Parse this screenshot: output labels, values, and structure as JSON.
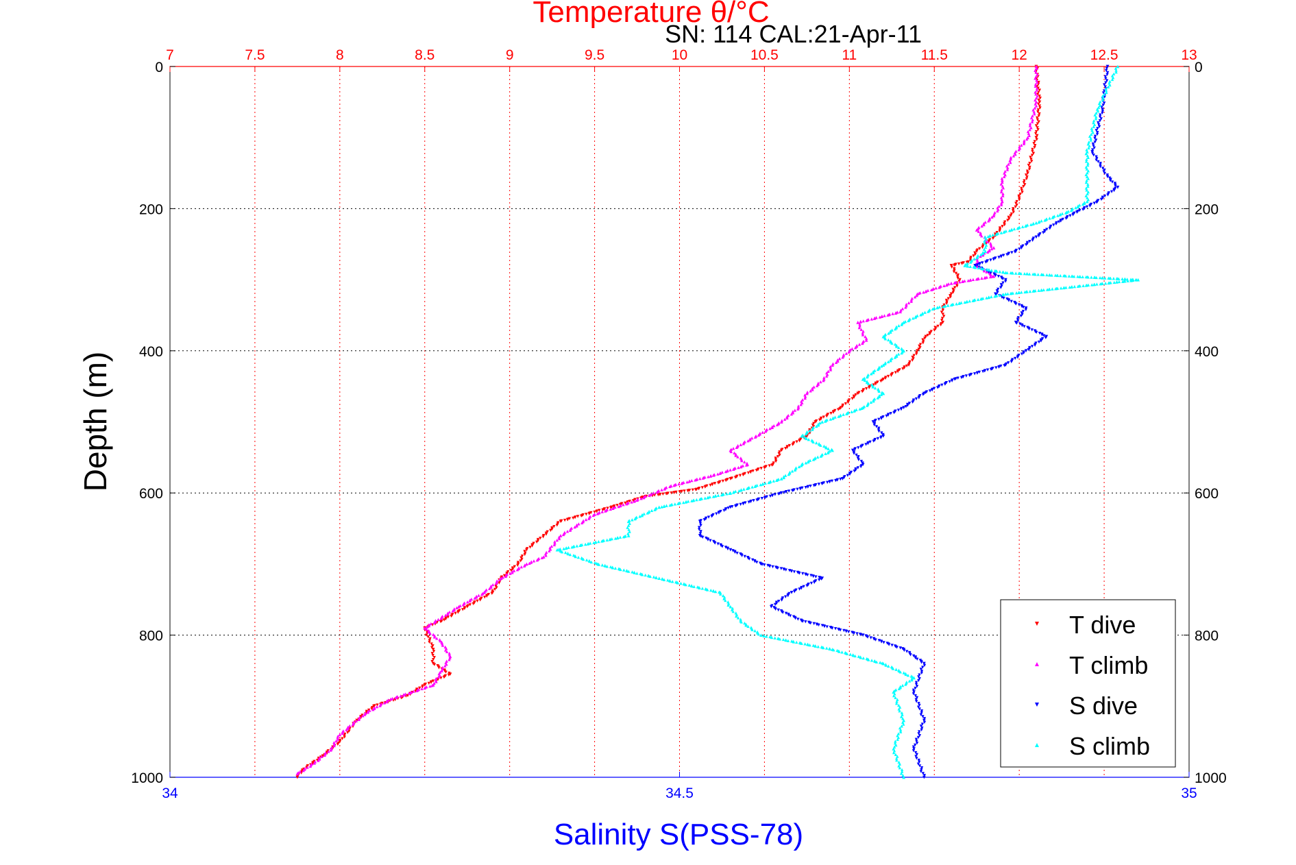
{
  "chart_data": {
    "type": "scatter",
    "title": "Temperature θ/°C",
    "subtitle": "SN: 114  CAL:21-Apr-11",
    "ylabel": "Depth (m)",
    "xlabel": "Salinity S(PSS-78)",
    "grid": true,
    "legend_position": "bottom-right",
    "y_reversed": true,
    "ylim": [
      0,
      1000
    ],
    "ticks_y": [
      0,
      200,
      400,
      600,
      800,
      1000
    ],
    "temperature_axis": {
      "position": "top",
      "range": [
        7,
        13
      ],
      "ticks": [
        7,
        7.5,
        8,
        8.5,
        9,
        9.5,
        10,
        10.5,
        11,
        11.5,
        12,
        12.5,
        13
      ],
      "tick_labels": [
        "7",
        "7.5",
        "8",
        "8.5",
        "9",
        "9.5",
        "10",
        "10.5",
        "11",
        "11.5",
        "12",
        "12.5",
        "13"
      ],
      "color": "#ff0000"
    },
    "salinity_axis": {
      "position": "bottom",
      "range": [
        34,
        35
      ],
      "ticks": [
        34,
        34.5,
        35
      ],
      "tick_labels": [
        "34",
        "34.5",
        "35"
      ],
      "color": "#0000ff"
    },
    "series": [
      {
        "name": "T dive",
        "axis": "temperature",
        "color": "#ff0000",
        "marker": "triangle-down",
        "points": [
          [
            12.1,
            0
          ],
          [
            12.12,
            50
          ],
          [
            12.1,
            100
          ],
          [
            12.05,
            150
          ],
          [
            12.0,
            185
          ],
          [
            11.95,
            210
          ],
          [
            11.85,
            240
          ],
          [
            11.75,
            260
          ],
          [
            11.7,
            275
          ],
          [
            11.6,
            280
          ],
          [
            11.65,
            300
          ],
          [
            11.6,
            320
          ],
          [
            11.55,
            340
          ],
          [
            11.55,
            360
          ],
          [
            11.45,
            380
          ],
          [
            11.4,
            400
          ],
          [
            11.35,
            420
          ],
          [
            11.2,
            440
          ],
          [
            11.05,
            460
          ],
          [
            10.95,
            480
          ],
          [
            10.8,
            500
          ],
          [
            10.75,
            520
          ],
          [
            10.6,
            540
          ],
          [
            10.55,
            560
          ],
          [
            10.3,
            580
          ],
          [
            10.1,
            595
          ],
          [
            9.8,
            605
          ],
          [
            9.6,
            620
          ],
          [
            9.3,
            640
          ],
          [
            9.2,
            660
          ],
          [
            9.1,
            680
          ],
          [
            9.05,
            700
          ],
          [
            8.95,
            720
          ],
          [
            8.9,
            740
          ],
          [
            8.75,
            760
          ],
          [
            8.6,
            780
          ],
          [
            8.5,
            790
          ],
          [
            8.55,
            820
          ],
          [
            8.55,
            840
          ],
          [
            8.65,
            855
          ],
          [
            8.5,
            870
          ],
          [
            8.4,
            885
          ],
          [
            8.2,
            900
          ],
          [
            8.1,
            920
          ],
          [
            8.0,
            950
          ],
          [
            7.9,
            970
          ],
          [
            7.78,
            990
          ],
          [
            7.75,
            1000
          ]
        ]
      },
      {
        "name": "T climb",
        "axis": "temperature",
        "color": "#ff00ff",
        "marker": "triangle-up",
        "points": [
          [
            12.1,
            0
          ],
          [
            12.1,
            50
          ],
          [
            12.05,
            100
          ],
          [
            11.95,
            130
          ],
          [
            11.9,
            160
          ],
          [
            11.9,
            190
          ],
          [
            11.85,
            210
          ],
          [
            11.75,
            230
          ],
          [
            11.85,
            255
          ],
          [
            11.75,
            270
          ],
          [
            11.75,
            280
          ],
          [
            11.85,
            295
          ],
          [
            11.6,
            305
          ],
          [
            11.4,
            320
          ],
          [
            11.3,
            345
          ],
          [
            11.05,
            360
          ],
          [
            11.1,
            385
          ],
          [
            11.0,
            400
          ],
          [
            10.9,
            420
          ],
          [
            10.85,
            440
          ],
          [
            10.75,
            460
          ],
          [
            10.7,
            480
          ],
          [
            10.6,
            500
          ],
          [
            10.45,
            520
          ],
          [
            10.3,
            540
          ],
          [
            10.4,
            560
          ],
          [
            10.2,
            575
          ],
          [
            9.95,
            590
          ],
          [
            9.75,
            610
          ],
          [
            9.5,
            630
          ],
          [
            9.3,
            660
          ],
          [
            9.2,
            690
          ],
          [
            9.1,
            700
          ],
          [
            8.95,
            720
          ],
          [
            8.85,
            740
          ],
          [
            8.7,
            760
          ],
          [
            8.5,
            790
          ],
          [
            8.6,
            810
          ],
          [
            8.65,
            830
          ],
          [
            8.6,
            850
          ],
          [
            8.55,
            870
          ],
          [
            8.3,
            890
          ],
          [
            8.15,
            910
          ],
          [
            8.0,
            940
          ],
          [
            7.95,
            960
          ],
          [
            7.85,
            980
          ],
          [
            7.75,
            995
          ]
        ]
      },
      {
        "name": "S dive",
        "axis": "salinity",
        "color": "#0000ff",
        "marker": "triangle-down",
        "points": [
          [
            34.92,
            0
          ],
          [
            34.915,
            60
          ],
          [
            34.905,
            120
          ],
          [
            34.92,
            155
          ],
          [
            34.93,
            170
          ],
          [
            34.91,
            190
          ],
          [
            34.89,
            205
          ],
          [
            34.87,
            220
          ],
          [
            34.85,
            240
          ],
          [
            34.83,
            260
          ],
          [
            34.79,
            280
          ],
          [
            34.82,
            300
          ],
          [
            34.81,
            320
          ],
          [
            34.84,
            340
          ],
          [
            34.83,
            360
          ],
          [
            34.86,
            380
          ],
          [
            34.84,
            400
          ],
          [
            34.82,
            420
          ],
          [
            34.77,
            440
          ],
          [
            34.74,
            460
          ],
          [
            34.72,
            480
          ],
          [
            34.69,
            500
          ],
          [
            34.7,
            520
          ],
          [
            34.67,
            540
          ],
          [
            34.68,
            560
          ],
          [
            34.66,
            580
          ],
          [
            34.6,
            600
          ],
          [
            34.55,
            620
          ],
          [
            34.52,
            640
          ],
          [
            34.52,
            660
          ],
          [
            34.55,
            680
          ],
          [
            34.58,
            700
          ],
          [
            34.64,
            720
          ],
          [
            34.61,
            740
          ],
          [
            34.59,
            760
          ],
          [
            34.62,
            780
          ],
          [
            34.68,
            800
          ],
          [
            34.72,
            820
          ],
          [
            34.74,
            840
          ],
          [
            34.73,
            880
          ],
          [
            34.74,
            920
          ],
          [
            34.73,
            960
          ],
          [
            34.74,
            1000
          ]
        ]
      },
      {
        "name": "S climb",
        "axis": "salinity",
        "color": "#00ffff",
        "marker": "triangle-up",
        "points": [
          [
            34.93,
            0
          ],
          [
            34.91,
            60
          ],
          [
            34.9,
            120
          ],
          [
            34.9,
            155
          ],
          [
            34.9,
            190
          ],
          [
            34.88,
            205
          ],
          [
            34.85,
            220
          ],
          [
            34.8,
            240
          ],
          [
            34.8,
            260
          ],
          [
            34.78,
            280
          ],
          [
            34.82,
            290
          ],
          [
            34.95,
            300
          ],
          [
            34.82,
            320
          ],
          [
            34.75,
            340
          ],
          [
            34.72,
            360
          ],
          [
            34.7,
            380
          ],
          [
            34.72,
            400
          ],
          [
            34.7,
            420
          ],
          [
            34.68,
            440
          ],
          [
            34.7,
            460
          ],
          [
            34.68,
            480
          ],
          [
            34.64,
            500
          ],
          [
            34.62,
            520
          ],
          [
            34.65,
            540
          ],
          [
            34.62,
            560
          ],
          [
            34.6,
            580
          ],
          [
            34.55,
            600
          ],
          [
            34.48,
            620
          ],
          [
            34.45,
            640
          ],
          [
            34.45,
            660
          ],
          [
            34.38,
            680
          ],
          [
            34.42,
            700
          ],
          [
            34.48,
            720
          ],
          [
            34.54,
            740
          ],
          [
            34.55,
            760
          ],
          [
            34.56,
            780
          ],
          [
            34.58,
            800
          ],
          [
            34.65,
            820
          ],
          [
            34.7,
            840
          ],
          [
            34.73,
            860
          ],
          [
            34.71,
            880
          ],
          [
            34.72,
            920
          ],
          [
            34.71,
            960
          ],
          [
            34.72,
            1000
          ]
        ]
      }
    ]
  }
}
